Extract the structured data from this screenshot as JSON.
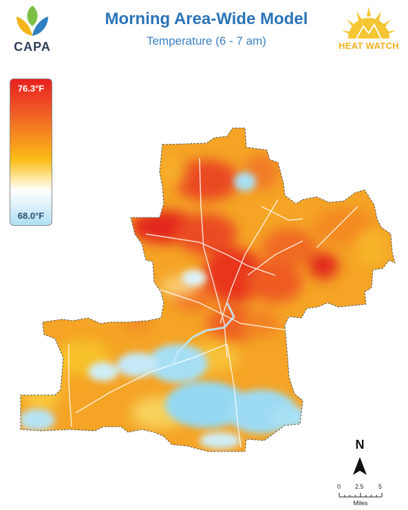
{
  "header": {
    "title": "Morning Area-Wide Model",
    "subtitle": "Temperature (6 - 7 am)"
  },
  "logos": {
    "left_text": "CAPA",
    "left_icon": "leaf-logo-icon",
    "right_text": "HEAT WATCH",
    "right_icon": "sun-logo-icon"
  },
  "legend": {
    "max_label": "76.3°F",
    "min_label": "68.0°F",
    "colors": [
      "#e8201f",
      "#f7951f",
      "#fbbb14",
      "#ffffff",
      "#aee0f3"
    ]
  },
  "map": {
    "hot_color": "#e8341f",
    "warm_color": "#f4a020",
    "cool_color": "#9fdcf3",
    "outline_color": "#555555"
  },
  "compass": {
    "label": "N",
    "icon": "north-arrow-icon"
  },
  "scale_bar": {
    "ticks": [
      "0",
      "2.5",
      "5"
    ],
    "unit": "Miles"
  }
}
